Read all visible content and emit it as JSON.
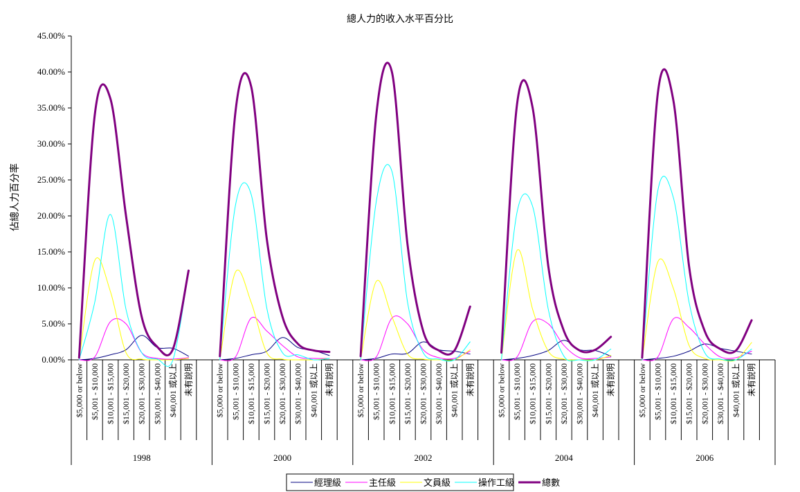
{
  "chart_data": {
    "type": "line",
    "title": "總人力的收入水平百分比",
    "ylabel": "佔總人力百分率",
    "xlabel": "",
    "ylim": [
      0,
      0.45
    ],
    "y_ticks": [
      "0.00%",
      "5.00%",
      "10.00%",
      "15.00%",
      "20.00%",
      "25.00%",
      "30.00%",
      "35.00%",
      "40.00%",
      "45.00%"
    ],
    "groups": [
      "1998",
      "2000",
      "2002",
      "2004",
      "2006"
    ],
    "categories": [
      "$5,000 or below",
      "$5,001 - $10,000",
      "$10,001 - $15,000",
      "$15,001 - $20,000",
      "$20,001 - $30,000",
      "$30,001 - $40,000",
      "$40,001 或以上",
      "未有說明"
    ],
    "grid": false,
    "legend_position": "bottom",
    "series": [
      {
        "name": "經理級",
        "color": "#000080",
        "width": 1,
        "values": [
          [
            0.0,
            0.002,
            0.007,
            0.014,
            0.034,
            0.017,
            0.016,
            0.005
          ],
          [
            0.0,
            0.002,
            0.007,
            0.012,
            0.031,
            0.017,
            0.013,
            0.006
          ],
          [
            0.0,
            0.002,
            0.008,
            0.009,
            0.025,
            0.014,
            0.012,
            0.008
          ],
          [
            0.0,
            0.002,
            0.006,
            0.013,
            0.027,
            0.014,
            0.013,
            0.005
          ],
          [
            0.0,
            0.002,
            0.005,
            0.012,
            0.022,
            0.016,
            0.012,
            0.008
          ]
        ]
      },
      {
        "name": "主任級",
        "color": "#ff00ff",
        "width": 1,
        "values": [
          [
            0.0,
            0.004,
            0.053,
            0.05,
            0.01,
            0.002,
            0.001,
            0.003
          ],
          [
            0.0,
            0.004,
            0.058,
            0.04,
            0.02,
            0.004,
            0.002,
            0.002
          ],
          [
            0.0,
            0.004,
            0.058,
            0.05,
            0.014,
            0.003,
            0.002,
            0.012
          ],
          [
            0.0,
            0.004,
            0.053,
            0.05,
            0.02,
            0.003,
            0.002,
            0.004
          ],
          [
            0.0,
            0.004,
            0.057,
            0.045,
            0.022,
            0.004,
            0.003,
            0.012
          ]
        ]
      },
      {
        "name": "文員級",
        "color": "#ffff00",
        "width": 1,
        "values": [
          [
            0.0,
            0.138,
            0.095,
            0.01,
            0.001,
            0.0,
            0.0,
            0.002
          ],
          [
            0.0,
            0.122,
            0.08,
            0.01,
            0.001,
            0.0,
            0.0,
            0.002
          ],
          [
            0.0,
            0.109,
            0.06,
            0.008,
            0.001,
            0.0,
            0.0,
            0.014
          ],
          [
            0.0,
            0.152,
            0.07,
            0.012,
            0.001,
            0.0,
            0.0,
            0.006
          ],
          [
            0.0,
            0.136,
            0.099,
            0.02,
            0.002,
            0.0,
            0.0,
            0.024
          ]
        ]
      },
      {
        "name": "操作工級",
        "color": "#00ffff",
        "width": 1,
        "values": [
          [
            0.0,
            0.08,
            0.202,
            0.07,
            0.01,
            0.001,
            0.0,
            0.123
          ],
          [
            0.0,
            0.215,
            0.23,
            0.072,
            0.01,
            0.007,
            0.0,
            0.002
          ],
          [
            0.0,
            0.22,
            0.262,
            0.08,
            0.01,
            0.001,
            0.0,
            0.025
          ],
          [
            0.0,
            0.205,
            0.213,
            0.07,
            0.005,
            0.0,
            0.0,
            0.015
          ],
          [
            0.0,
            0.235,
            0.225,
            0.08,
            0.01,
            0.001,
            0.0,
            0.015
          ]
        ]
      },
      {
        "name": "總數",
        "color": "#800080",
        "width": 3,
        "values": [
          [
            0.003,
            0.34,
            0.363,
            0.2,
            0.06,
            0.018,
            0.015,
            0.124
          ],
          [
            0.005,
            0.345,
            0.38,
            0.168,
            0.06,
            0.022,
            0.013,
            0.011
          ],
          [
            0.005,
            0.34,
            0.4,
            0.16,
            0.04,
            0.013,
            0.013,
            0.074
          ],
          [
            0.01,
            0.355,
            0.35,
            0.13,
            0.04,
            0.013,
            0.014,
            0.032
          ],
          [
            0.003,
            0.37,
            0.36,
            0.13,
            0.04,
            0.015,
            0.013,
            0.055
          ]
        ]
      }
    ]
  }
}
